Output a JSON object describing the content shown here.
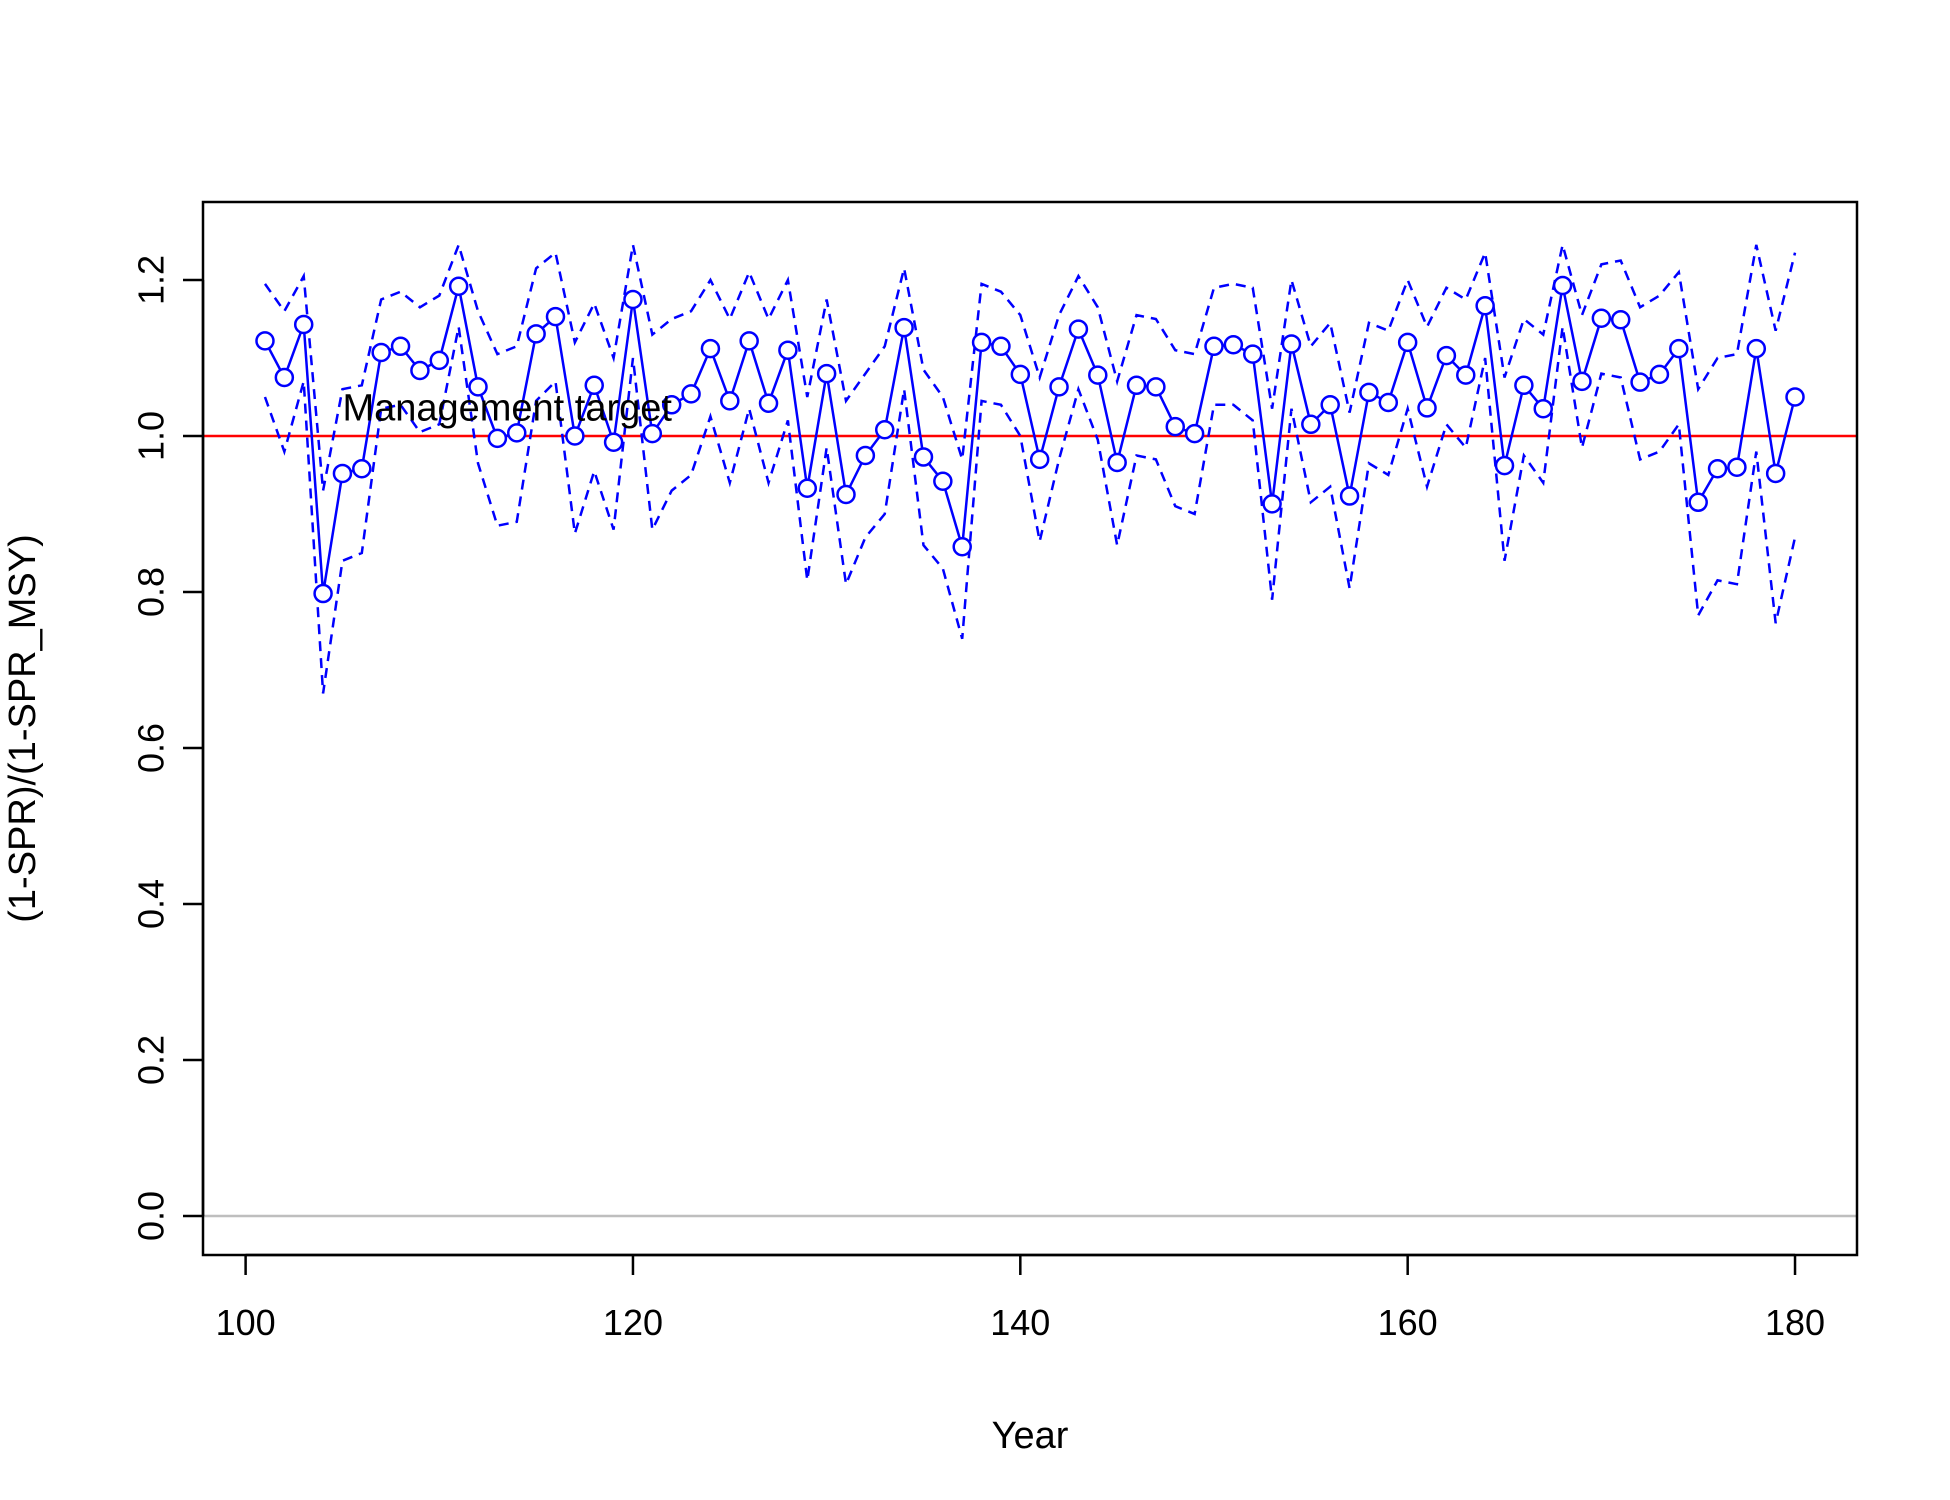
{
  "chart_data": {
    "type": "line",
    "title": "",
    "xlabel": "Year",
    "ylabel": "(1-SPR)/(1-SPR_MSY)",
    "xlim": [
      97.8,
      183.2
    ],
    "ylim": [
      -0.05,
      1.3
    ],
    "x_ticks": [
      100,
      120,
      140,
      160,
      180
    ],
    "y_ticks": [
      0.0,
      0.2,
      0.4,
      0.6,
      0.8,
      1.0,
      1.2
    ],
    "x_tick_labels": [
      "100",
      "120",
      "140",
      "160",
      "180"
    ],
    "y_tick_labels": [
      "0.0",
      "0.2",
      "0.4",
      "0.6",
      "0.8",
      "1.0",
      "1.2"
    ],
    "grid": false,
    "colors": {
      "series": "#0000ff",
      "target": "#ff0000",
      "zero": "#bebebe"
    },
    "reference_lines": [
      {
        "y": 1.0,
        "color": "#ff0000",
        "label": "Management target",
        "label_x": 105,
        "label_y": 1.02
      },
      {
        "y": 0.0,
        "color": "#bebebe",
        "label": ""
      }
    ],
    "x": [
      101,
      102,
      103,
      104,
      105,
      106,
      107,
      108,
      109,
      110,
      111,
      112,
      113,
      114,
      115,
      116,
      117,
      118,
      119,
      120,
      121,
      122,
      123,
      124,
      125,
      126,
      127,
      128,
      129,
      130,
      131,
      132,
      133,
      134,
      135,
      136,
      137,
      138,
      139,
      140,
      141,
      142,
      143,
      144,
      145,
      146,
      147,
      148,
      149,
      150,
      151,
      152,
      153,
      154,
      155,
      156,
      157,
      158,
      159,
      160,
      161,
      162,
      163,
      164,
      165,
      166,
      167,
      168,
      169,
      170,
      171,
      172,
      173,
      174,
      175,
      176,
      177,
      178,
      179,
      180
    ],
    "series": [
      {
        "style": "line-points",
        "values": [
          1.122,
          1.075,
          1.143,
          0.798,
          0.952,
          0.958,
          1.107,
          1.115,
          1.084,
          1.097,
          1.192,
          1.063,
          0.997,
          1.004,
          1.131,
          1.153,
          1.0,
          1.065,
          0.992,
          1.175,
          1.003,
          1.04,
          1.054,
          1.112,
          1.045,
          1.122,
          1.042,
          1.11,
          0.933,
          1.08,
          0.925,
          0.975,
          1.008,
          1.139,
          0.973,
          0.942,
          0.858,
          1.12,
          1.115,
          1.079,
          0.97,
          1.063,
          1.137,
          1.078,
          0.966,
          1.065,
          1.063,
          1.012,
          1.003,
          1.115,
          1.117,
          1.105,
          0.913,
          1.118,
          1.015,
          1.04,
          0.923,
          1.056,
          1.043,
          1.12,
          1.036,
          1.103,
          1.078,
          1.167,
          0.962,
          1.065,
          1.035,
          1.193,
          1.07,
          1.151,
          1.149,
          1.069,
          1.079,
          1.112,
          0.915,
          0.958,
          0.96,
          1.112,
          0.952,
          1.05
        ]
      },
      {
        "style": "dashed",
        "values": [
          1.195,
          1.16,
          1.205,
          0.93,
          1.06,
          1.065,
          1.175,
          1.185,
          1.165,
          1.18,
          1.245,
          1.16,
          1.105,
          1.115,
          1.215,
          1.235,
          1.12,
          1.17,
          1.1,
          1.245,
          1.13,
          1.15,
          1.16,
          1.2,
          1.15,
          1.21,
          1.15,
          1.2,
          1.05,
          1.175,
          1.045,
          1.08,
          1.115,
          1.215,
          1.085,
          1.05,
          0.97,
          1.195,
          1.185,
          1.155,
          1.075,
          1.155,
          1.205,
          1.165,
          1.07,
          1.155,
          1.15,
          1.11,
          1.105,
          1.19,
          1.195,
          1.19,
          1.035,
          1.2,
          1.115,
          1.145,
          1.03,
          1.145,
          1.135,
          1.2,
          1.14,
          1.19,
          1.175,
          1.235,
          1.075,
          1.15,
          1.13,
          1.245,
          1.155,
          1.22,
          1.225,
          1.165,
          1.18,
          1.21,
          1.06,
          1.1,
          1.105,
          1.245,
          1.135,
          1.235
        ]
      },
      {
        "style": "dashed",
        "values": [
          1.05,
          0.98,
          1.07,
          0.67,
          0.84,
          0.85,
          1.035,
          1.04,
          1.005,
          1.015,
          1.14,
          0.965,
          0.885,
          0.89,
          1.045,
          1.07,
          0.875,
          0.955,
          0.88,
          1.1,
          0.88,
          0.93,
          0.95,
          1.025,
          0.94,
          1.035,
          0.94,
          1.02,
          0.815,
          0.985,
          0.81,
          0.87,
          0.9,
          1.06,
          0.86,
          0.83,
          0.74,
          1.045,
          1.04,
          1.0,
          0.865,
          0.97,
          1.06,
          0.995,
          0.86,
          0.975,
          0.97,
          0.91,
          0.9,
          1.04,
          1.04,
          1.02,
          0.79,
          1.035,
          0.915,
          0.935,
          0.805,
          0.965,
          0.95,
          1.035,
          0.935,
          1.015,
          0.985,
          1.1,
          0.84,
          0.975,
          0.94,
          1.14,
          0.985,
          1.08,
          1.075,
          0.97,
          0.98,
          1.015,
          0.77,
          0.815,
          0.81,
          0.98,
          0.76,
          0.87
        ]
      }
    ]
  }
}
